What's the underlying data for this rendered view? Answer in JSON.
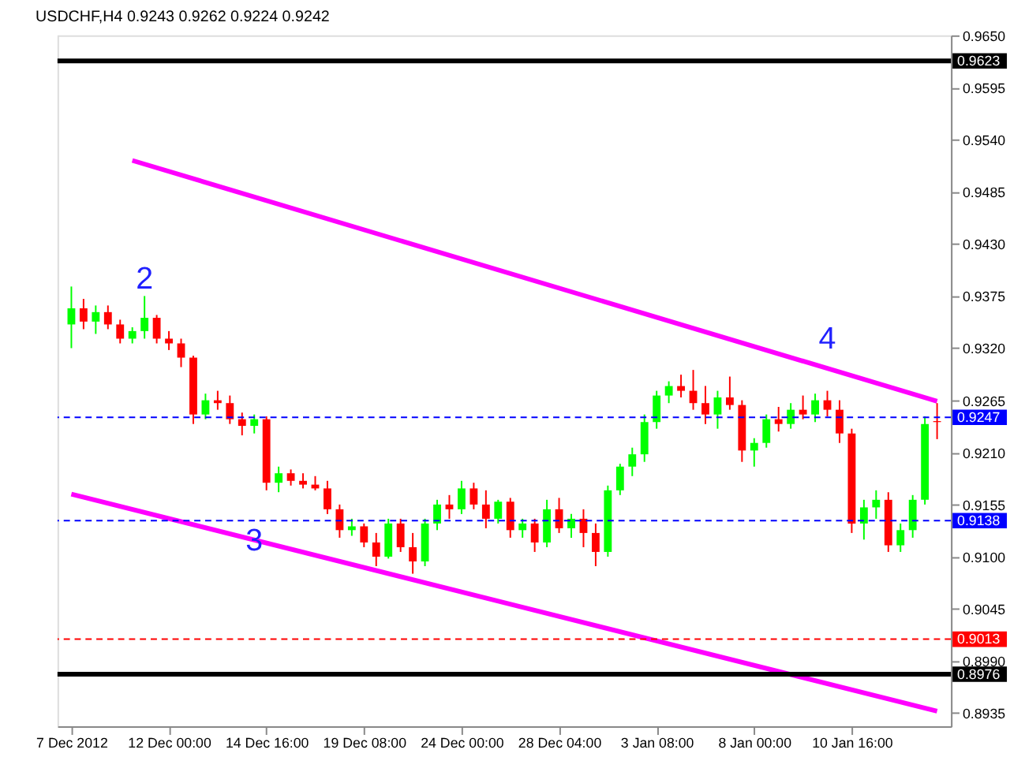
{
  "chart_data": {
    "type": "candlestick",
    "title": "USDCHF,H4  0.9243 0.9262 0.9224 0.9242",
    "categories": [
      "7 Dec 2012",
      null,
      null,
      null,
      null,
      null,
      null,
      null,
      "12 Dec 00:00",
      null,
      null,
      null,
      null,
      null,
      null,
      null,
      "14 Dec 16:00",
      null,
      null,
      null,
      null,
      null,
      null,
      null,
      "19 Dec 08:00",
      null,
      null,
      null,
      null,
      null,
      null,
      null,
      "24 Dec 00:00",
      null,
      null,
      null,
      null,
      null,
      null,
      null,
      "28 Dec 04:00",
      null,
      null,
      null,
      null,
      null,
      null,
      null,
      "3 Jan 08:00",
      null,
      null,
      null,
      null,
      null,
      null,
      null,
      "8 Jan 00:00",
      null,
      null,
      null,
      null,
      null,
      null,
      null,
      "10 Jan 16:00",
      null,
      null,
      null,
      null,
      null,
      null,
      null
    ],
    "ohlc": [
      [
        0.9345,
        0.9385,
        0.932,
        0.9362
      ],
      [
        0.9362,
        0.9372,
        0.934,
        0.9348
      ],
      [
        0.9348,
        0.9365,
        0.9335,
        0.9358
      ],
      [
        0.9358,
        0.9365,
        0.934,
        0.9345
      ],
      [
        0.9345,
        0.935,
        0.9325,
        0.933
      ],
      [
        0.933,
        0.9342,
        0.9325,
        0.9338
      ],
      [
        0.9338,
        0.9375,
        0.933,
        0.9352
      ],
      [
        0.9352,
        0.9355,
        0.9325,
        0.933
      ],
      [
        0.933,
        0.9338,
        0.9318,
        0.9325
      ],
      [
        0.9325,
        0.933,
        0.93,
        0.931
      ],
      [
        0.931,
        0.9312,
        0.924,
        0.925
      ],
      [
        0.925,
        0.9272,
        0.9245,
        0.9265
      ],
      [
        0.9265,
        0.9275,
        0.9255,
        0.9262
      ],
      [
        0.9262,
        0.927,
        0.924,
        0.9245
      ],
      [
        0.9245,
        0.9252,
        0.9228,
        0.9238
      ],
      [
        0.9238,
        0.925,
        0.923,
        0.9245
      ],
      [
        0.9245,
        0.9248,
        0.917,
        0.9178
      ],
      [
        0.9178,
        0.9195,
        0.9168,
        0.9188
      ],
      [
        0.9188,
        0.9192,
        0.9175,
        0.918
      ],
      [
        0.918,
        0.9188,
        0.9172,
        0.9176
      ],
      [
        0.9176,
        0.9185,
        0.917,
        0.9172
      ],
      [
        0.9172,
        0.918,
        0.9145,
        0.915
      ],
      [
        0.915,
        0.9155,
        0.912,
        0.9128
      ],
      [
        0.9128,
        0.914,
        0.9122,
        0.9132
      ],
      [
        0.9132,
        0.9135,
        0.911,
        0.9115
      ],
      [
        0.9115,
        0.9125,
        0.909,
        0.91
      ],
      [
        0.91,
        0.914,
        0.9098,
        0.9135
      ],
      [
        0.9135,
        0.914,
        0.9105,
        0.911
      ],
      [
        0.911,
        0.9125,
        0.9082,
        0.9095
      ],
      [
        0.9095,
        0.914,
        0.909,
        0.9135
      ],
      [
        0.9135,
        0.916,
        0.9128,
        0.9155
      ],
      [
        0.9155,
        0.9165,
        0.914,
        0.915
      ],
      [
        0.915,
        0.918,
        0.9145,
        0.9172
      ],
      [
        0.9172,
        0.9178,
        0.915,
        0.9155
      ],
      [
        0.9155,
        0.917,
        0.913,
        0.914
      ],
      [
        0.914,
        0.916,
        0.9135,
        0.9158
      ],
      [
        0.9158,
        0.9162,
        0.912,
        0.9128
      ],
      [
        0.9128,
        0.914,
        0.912,
        0.9135
      ],
      [
        0.9135,
        0.914,
        0.9105,
        0.9115
      ],
      [
        0.9115,
        0.916,
        0.911,
        0.915
      ],
      [
        0.915,
        0.9162,
        0.9125,
        0.913
      ],
      [
        0.913,
        0.9145,
        0.912,
        0.914
      ],
      [
        0.914,
        0.915,
        0.911,
        0.9125
      ],
      [
        0.9125,
        0.9135,
        0.909,
        0.9105
      ],
      [
        0.9105,
        0.9175,
        0.91,
        0.917
      ],
      [
        0.917,
        0.9198,
        0.9165,
        0.9195
      ],
      [
        0.9195,
        0.9215,
        0.9185,
        0.9208
      ],
      [
        0.9208,
        0.925,
        0.92,
        0.9242
      ],
      [
        0.9242,
        0.9275,
        0.9235,
        0.927
      ],
      [
        0.927,
        0.9285,
        0.9262,
        0.928
      ],
      [
        0.928,
        0.9292,
        0.9268,
        0.9275
      ],
      [
        0.9275,
        0.9297,
        0.9255,
        0.9262
      ],
      [
        0.9262,
        0.928,
        0.924,
        0.925
      ],
      [
        0.925,
        0.9275,
        0.9235,
        0.9268
      ],
      [
        0.9268,
        0.929,
        0.9255,
        0.926
      ],
      [
        0.926,
        0.9265,
        0.92,
        0.9212
      ],
      [
        0.9212,
        0.9225,
        0.9195,
        0.922
      ],
      [
        0.922,
        0.925,
        0.9215,
        0.9245
      ],
      [
        0.9245,
        0.9258,
        0.9232,
        0.924
      ],
      [
        0.924,
        0.9262,
        0.9235,
        0.9255
      ],
      [
        0.9255,
        0.927,
        0.9245,
        0.925
      ],
      [
        0.925,
        0.9272,
        0.9242,
        0.9265
      ],
      [
        0.9265,
        0.9275,
        0.9248,
        0.9255
      ],
      [
        0.9255,
        0.9265,
        0.922,
        0.923
      ],
      [
        0.923,
        0.9235,
        0.9125,
        0.9135
      ],
      [
        0.9135,
        0.916,
        0.9118,
        0.9152
      ],
      [
        0.9152,
        0.917,
        0.914,
        0.916
      ],
      [
        0.916,
        0.9168,
        0.9105,
        0.9112
      ],
      [
        0.9112,
        0.9135,
        0.9105,
        0.9128
      ],
      [
        0.9128,
        0.9165,
        0.912,
        0.916
      ],
      [
        0.916,
        0.9248,
        0.9155,
        0.924
      ],
      [
        0.9243,
        0.9262,
        0.9224,
        0.9242
      ]
    ],
    "colors": [
      "#00ff00",
      "#ff0000",
      "#00ff00",
      "#ff0000",
      "#ff0000",
      "#00ff00",
      "#00ff00",
      "#ff0000",
      "#ff0000",
      "#ff0000",
      "#ff0000",
      "#00ff00",
      "#ff0000",
      "#ff0000",
      "#ff0000",
      "#00ff00",
      "#ff0000",
      "#00ff00",
      "#ff0000",
      "#ff0000",
      "#ff0000",
      "#ff0000",
      "#ff0000",
      "#00ff00",
      "#ff0000",
      "#ff0000",
      "#00ff00",
      "#ff0000",
      "#ff0000",
      "#00ff00",
      "#00ff00",
      "#ff0000",
      "#00ff00",
      "#ff0000",
      "#ff0000",
      "#00ff00",
      "#ff0000",
      "#00ff00",
      "#ff0000",
      "#00ff00",
      "#ff0000",
      "#00ff00",
      "#ff0000",
      "#ff0000",
      "#00ff00",
      "#00ff00",
      "#00ff00",
      "#00ff00",
      "#00ff00",
      "#00ff00",
      "#ff0000",
      "#ff0000",
      "#ff0000",
      "#00ff00",
      "#ff0000",
      "#ff0000",
      "#00ff00",
      "#00ff00",
      "#ff0000",
      "#00ff00",
      "#ff0000",
      "#00ff00",
      "#ff0000",
      "#ff0000",
      "#ff0000",
      "#00ff00",
      "#00ff00",
      "#ff0000",
      "#00ff00",
      "#00ff00",
      "#00ff00",
      "#ff0000"
    ],
    "series": [
      {
        "type": "line",
        "color": "#ff00ff",
        "values": [
          null,
          null,
          null,
          null,
          null,
          0.9518,
          null,
          null,
          null,
          null,
          null,
          null,
          null,
          null,
          null,
          null,
          null,
          null,
          null,
          null,
          null,
          null,
          null,
          null,
          null,
          null,
          null,
          null,
          null,
          null,
          null,
          null,
          null,
          null,
          null,
          null,
          null,
          null,
          null,
          null,
          null,
          null,
          null,
          null,
          null,
          null,
          null,
          null,
          null,
          null,
          null,
          null,
          null,
          null,
          null,
          null,
          null,
          null,
          null,
          null,
          null,
          null,
          null,
          null,
          null,
          null,
          null,
          null,
          null,
          null,
          null,
          0.9264
        ]
      },
      {
        "type": "line",
        "color": "#ff00ff",
        "values": [
          0.9166,
          null,
          null,
          null,
          null,
          null,
          null,
          null,
          null,
          null,
          null,
          null,
          null,
          null,
          null,
          null,
          null,
          null,
          null,
          null,
          null,
          null,
          null,
          null,
          null,
          null,
          null,
          null,
          null,
          null,
          null,
          null,
          null,
          null,
          null,
          null,
          null,
          null,
          null,
          null,
          null,
          null,
          null,
          null,
          null,
          null,
          null,
          null,
          null,
          null,
          null,
          null,
          null,
          null,
          null,
          null,
          null,
          null,
          null,
          null,
          null,
          null,
          null,
          null,
          null,
          null,
          null,
          null,
          null,
          null,
          null,
          0.8937
        ]
      }
    ],
    "ylim": [
      0.8921,
      0.965
    ],
    "yticks": [
      {
        "value": 0.965,
        "label": "0.9650"
      },
      0.9595,
      {
        "value": 0.954,
        "label": "0.9540"
      },
      {
        "value": 0.9485,
        "label": "0.9485"
      },
      {
        "value": 0.943,
        "label": "0.9430"
      },
      0.9375,
      {
        "value": 0.932,
        "label": "0.9320"
      },
      0.9265,
      {
        "value": 0.921,
        "label": "0.9210"
      },
      0.9155,
      {
        "value": 0.91,
        "label": "0.9100"
      },
      0.9045,
      {
        "value": 0.899,
        "label": "0.8990"
      },
      0.8935
    ],
    "ref_lines": [
      {
        "axis": "y",
        "value": 0.9623,
        "label": "0.9623",
        "color": "#000000",
        "line_style": "solid"
      },
      {
        "axis": "y",
        "value": 0.9247,
        "label": "0.9247",
        "color": "#0000ff",
        "line_style": "dashed"
      },
      {
        "axis": "y",
        "value": 0.9138,
        "label": "0.9138",
        "color": "#0000ff",
        "line_style": "dashed"
      },
      {
        "axis": "y",
        "value": 0.9013,
        "label": "0.9013",
        "color": "#ff0000",
        "line_style": "dashed"
      },
      {
        "axis": "y",
        "value": 0.8976,
        "label": "0.8976",
        "color": "#000000",
        "line_style": "solid"
      }
    ],
    "annotations": [
      "2",
      "3",
      "4"
    ],
    "grid": false
  }
}
